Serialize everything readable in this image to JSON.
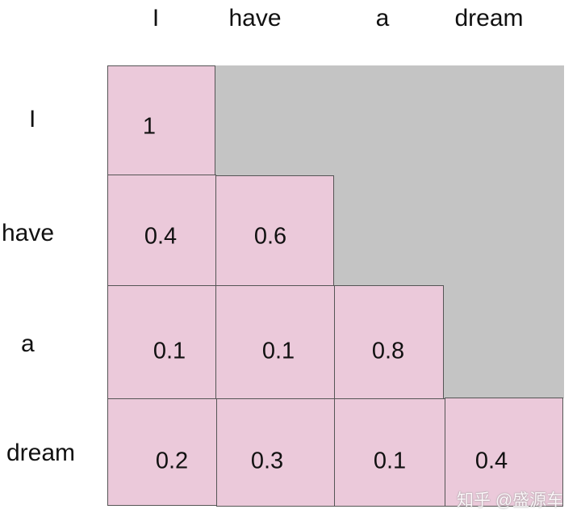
{
  "columns": [
    "I",
    "have",
    "a",
    "dream"
  ],
  "rows": [
    "I",
    "have",
    "a",
    "dream"
  ],
  "matrix": [
    [
      "1"
    ],
    [
      "0.4",
      "0.6"
    ],
    [
      "0.1",
      "0.1",
      "0.8"
    ],
    [
      "0.2",
      "0.3",
      "0.1",
      "0.4"
    ]
  ],
  "watermark": "知乎 @盛源车",
  "colors": {
    "cell_fill": "#ebc9da",
    "masked_fill": "#c4c4c4",
    "border": "#555555"
  }
}
